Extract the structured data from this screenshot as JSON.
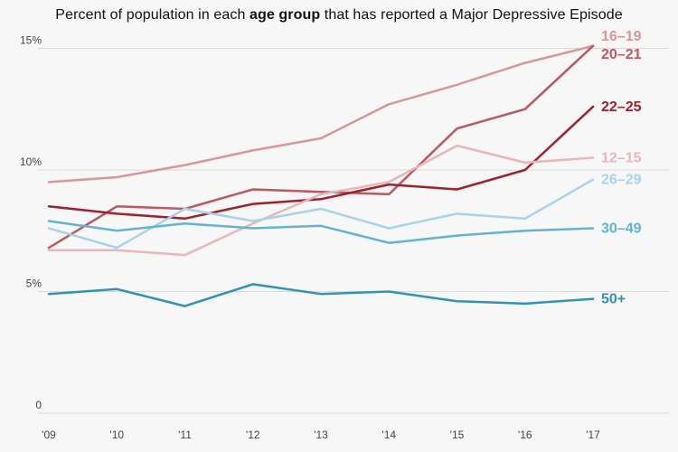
{
  "chart_data": {
    "type": "line",
    "title_prefix": "Percent of population in each ",
    "title_bold": "age group",
    "title_suffix": " that has reported a Major Depressive Episode",
    "x": [
      "'09",
      "'10",
      "'11",
      "'12",
      "'13",
      "'14",
      "'15",
      "'16",
      "'17"
    ],
    "ylim": [
      0,
      15.5
    ],
    "yticks": [
      {
        "value": 0,
        "label": "0"
      },
      {
        "value": 5,
        "label": "5%"
      },
      {
        "value": 10,
        "label": "10%"
      },
      {
        "value": 15,
        "label": "15%"
      }
    ],
    "grid": true,
    "series": [
      {
        "name": "16–19",
        "color": "#d9959a",
        "values": [
          9.5,
          9.7,
          10.2,
          10.8,
          11.3,
          12.7,
          13.5,
          14.4,
          15.1
        ]
      },
      {
        "name": "20–21",
        "color": "#c0575f",
        "values": [
          6.8,
          8.5,
          8.4,
          9.2,
          9.1,
          9.0,
          11.7,
          12.5,
          15.1
        ]
      },
      {
        "name": "22–25",
        "color": "#a31f2b",
        "values": [
          8.5,
          8.2,
          8.0,
          8.6,
          8.8,
          9.4,
          9.2,
          10.0,
          12.6
        ]
      },
      {
        "name": "12–15",
        "color": "#e8b6b8",
        "values": [
          6.7,
          6.7,
          6.5,
          7.8,
          9.0,
          9.5,
          11.0,
          10.3,
          10.5
        ]
      },
      {
        "name": "26–29",
        "color": "#a6d3e9",
        "values": [
          7.6,
          6.8,
          8.4,
          7.9,
          8.4,
          7.6,
          8.2,
          8.0,
          9.6
        ]
      },
      {
        "name": "30–49",
        "color": "#5fb3d3",
        "values": [
          7.9,
          7.5,
          7.8,
          7.6,
          7.7,
          7.0,
          7.3,
          7.5,
          7.6
        ]
      },
      {
        "name": "50+",
        "color": "#2e93b8",
        "values": [
          4.9,
          5.1,
          4.4,
          5.3,
          4.9,
          5.0,
          4.6,
          4.5,
          4.7
        ]
      }
    ]
  }
}
